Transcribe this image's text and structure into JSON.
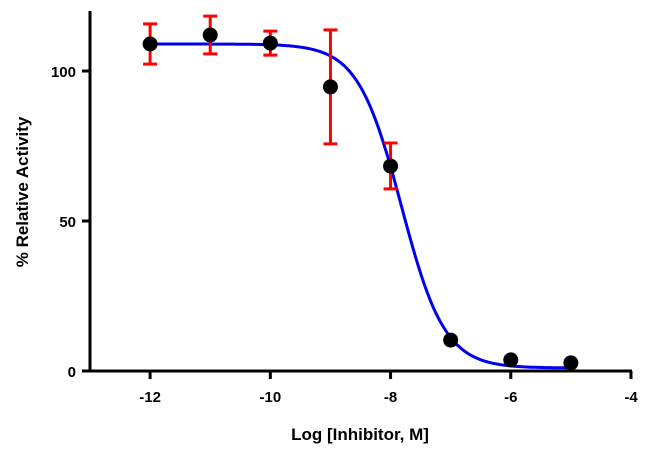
{
  "chart_data": {
    "type": "scatter",
    "title": "",
    "xlabel": "Log [Inhibitor, M]",
    "ylabel": "% Relative Activity",
    "xlim": [
      -13,
      -4
    ],
    "ylim": [
      0,
      120
    ],
    "x_ticks": [
      -12,
      -10,
      -8,
      -6,
      -4
    ],
    "y_ticks": [
      0,
      50,
      100
    ],
    "grid": false,
    "x": [
      -12,
      -11,
      -10,
      -9,
      -8,
      -7,
      -6,
      -5
    ],
    "y": [
      109,
      112,
      109.3,
      94.7,
      68.3,
      10.3,
      3.7,
      2.7
    ],
    "error_bars": [
      [
        102.3,
        115.7
      ],
      [
        105.7,
        118.3
      ],
      [
        105.3,
        113.3
      ],
      [
        75.7,
        113.7
      ],
      [
        60.7,
        76
      ],
      null,
      null,
      null
    ],
    "fit_curve": {
      "model": "four-parameter logistic",
      "top": 109,
      "bottom": 1,
      "logIC50": -7.82,
      "hill_slope": 1.2,
      "x_range": [
        -12,
        -5
      ]
    },
    "colors": {
      "points": "#000000",
      "error_bars": "#ff0000",
      "curve": "#0000ee"
    }
  }
}
